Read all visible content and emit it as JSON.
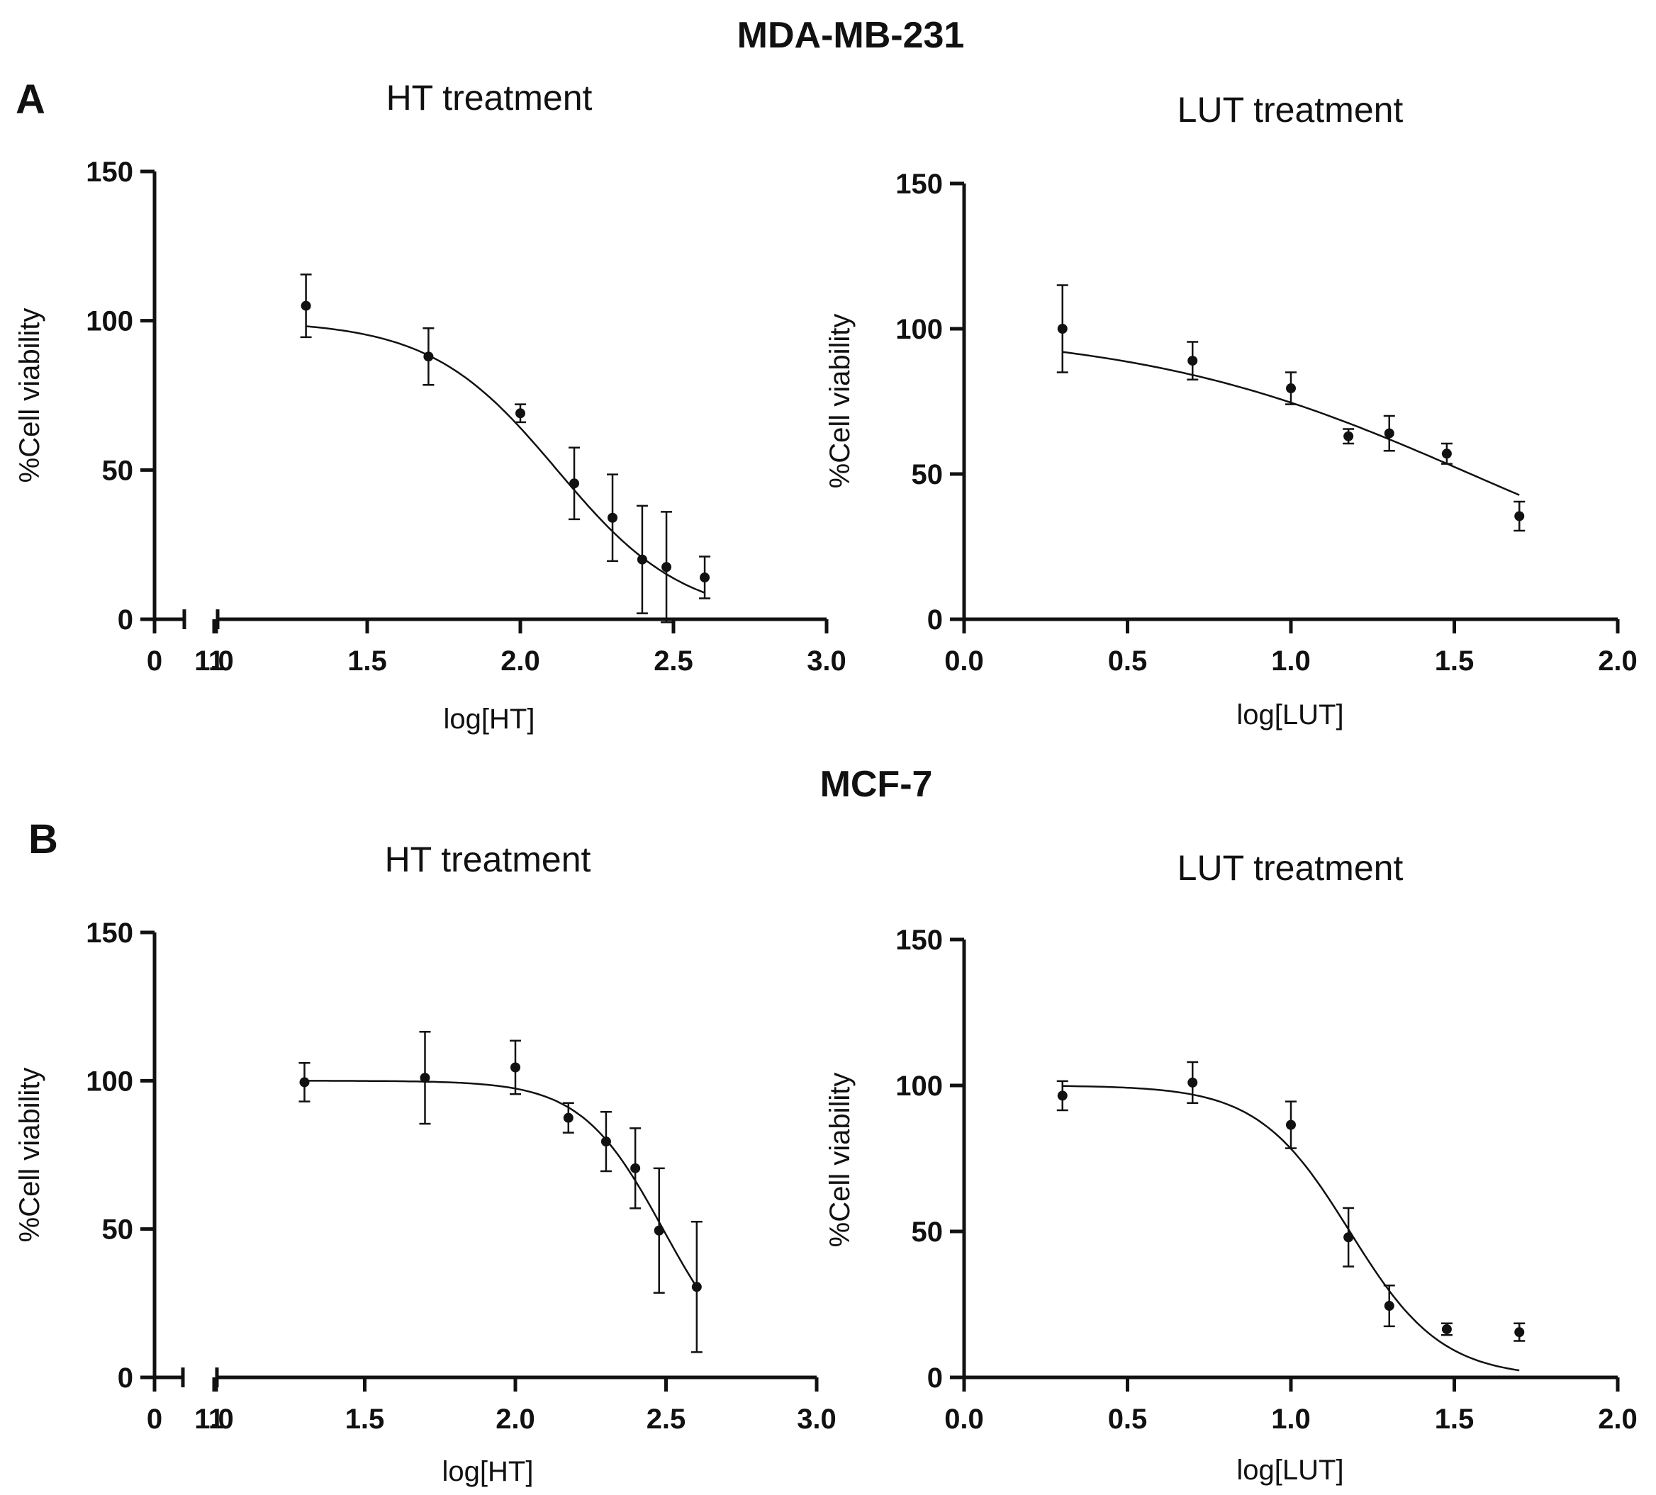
{
  "figure": {
    "sections": [
      {
        "letter": "A",
        "heading": "MDA-MB-231"
      },
      {
        "letter": "B",
        "heading": "MCF-7"
      }
    ]
  },
  "chart_data": [
    {
      "id": "A-HT",
      "type": "scatter",
      "fit": "sigmoidal dose-response",
      "title": "HT treatment",
      "xlabel": "log[HT]",
      "ylabel": "%Cell viability",
      "ylim": [
        0,
        150
      ],
      "yticks": [
        0,
        50,
        100,
        150
      ],
      "xlim": [
        1.0,
        3.0
      ],
      "xticks": [
        1.0,
        1.5,
        2.0,
        2.5,
        3.0
      ],
      "xtick_labels": [
        "1.0",
        "1.5",
        "2.0",
        "2.5",
        "3.0"
      ],
      "axis_break": {
        "pre_break_labels": [
          "0",
          "1"
        ]
      },
      "x": [
        1.3,
        1.7,
        2.0,
        2.176,
        2.301,
        2.398,
        2.477,
        2.602
      ],
      "y": [
        105,
        88,
        69,
        45.5,
        34,
        20,
        17.5,
        14
      ],
      "sd": [
        10.5,
        9.5,
        3,
        12,
        14.5,
        18,
        18.5,
        7
      ],
      "fit_params": {
        "top": 100,
        "bottom": 0,
        "logIC50": 2.12,
        "hill": -2.1
      }
    },
    {
      "id": "A-LUT",
      "type": "scatter",
      "fit": "sigmoidal dose-response",
      "title": "LUT treatment",
      "xlabel": "log[LUT]",
      "ylabel": "%Cell viability",
      "ylim": [
        0,
        150
      ],
      "yticks": [
        0,
        50,
        100,
        150
      ],
      "xlim": [
        0.0,
        2.0
      ],
      "xticks": [
        0.0,
        0.5,
        1.0,
        1.5,
        2.0
      ],
      "xtick_labels": [
        "0.0",
        "0.5",
        "1.0",
        "1.5",
        "2.0"
      ],
      "x": [
        0.301,
        0.699,
        1.0,
        1.176,
        1.301,
        1.477,
        1.699
      ],
      "y": [
        100,
        89,
        79.5,
        63,
        64,
        57,
        35.5
      ],
      "sd": [
        15,
        6.5,
        5.5,
        2.5,
        6,
        3.5,
        5
      ],
      "fit_params": {
        "top": 100,
        "bottom": 0,
        "logIC50": 1.55,
        "hill": -0.85
      }
    },
    {
      "id": "B-HT",
      "type": "scatter",
      "fit": "sigmoidal dose-response",
      "title": "HT treatment",
      "xlabel": "log[HT]",
      "ylabel": "%Cell viability",
      "ylim": [
        0,
        150
      ],
      "yticks": [
        0,
        50,
        100,
        150
      ],
      "xlim": [
        1.0,
        3.0
      ],
      "xticks": [
        1.0,
        1.5,
        2.0,
        2.5,
        3.0
      ],
      "xtick_labels": [
        "1.0",
        "1.5",
        "2.0",
        "2.5",
        "3.0"
      ],
      "axis_break": {
        "pre_break_labels": [
          "0",
          "1"
        ]
      },
      "x": [
        1.3,
        1.7,
        2.0,
        2.176,
        2.301,
        2.398,
        2.477,
        2.602
      ],
      "y": [
        99.5,
        101,
        104.5,
        87.5,
        79.5,
        70.5,
        49.5,
        30.5
      ],
      "sd": [
        6.5,
        15.5,
        9,
        5,
        10,
        13.5,
        21,
        22
      ],
      "fit_params": {
        "top": 100,
        "bottom": 0,
        "logIC50": 2.49,
        "hill": -3.2
      }
    },
    {
      "id": "B-LUT",
      "type": "scatter",
      "fit": "sigmoidal dose-response",
      "title": "LUT treatment",
      "xlabel": "log[LUT]",
      "ylabel": "%Cell viability",
      "ylim": [
        0,
        150
      ],
      "yticks": [
        0,
        50,
        100,
        150
      ],
      "xlim": [
        0.0,
        2.0
      ],
      "xticks": [
        0.0,
        0.5,
        1.0,
        1.5,
        2.0
      ],
      "xtick_labels": [
        "0.0",
        "0.5",
        "1.0",
        "1.5",
        "2.0"
      ],
      "x": [
        0.301,
        0.699,
        1.0,
        1.176,
        1.301,
        1.477,
        1.699
      ],
      "y": [
        96.5,
        101,
        86.5,
        48,
        24.5,
        16.5,
        15.5
      ],
      "sd": [
        5,
        7,
        8,
        10,
        7,
        2,
        3
      ],
      "fit_params": {
        "top": 100,
        "bottom": 0,
        "logIC50": 1.18,
        "hill": -3.1
      }
    }
  ]
}
